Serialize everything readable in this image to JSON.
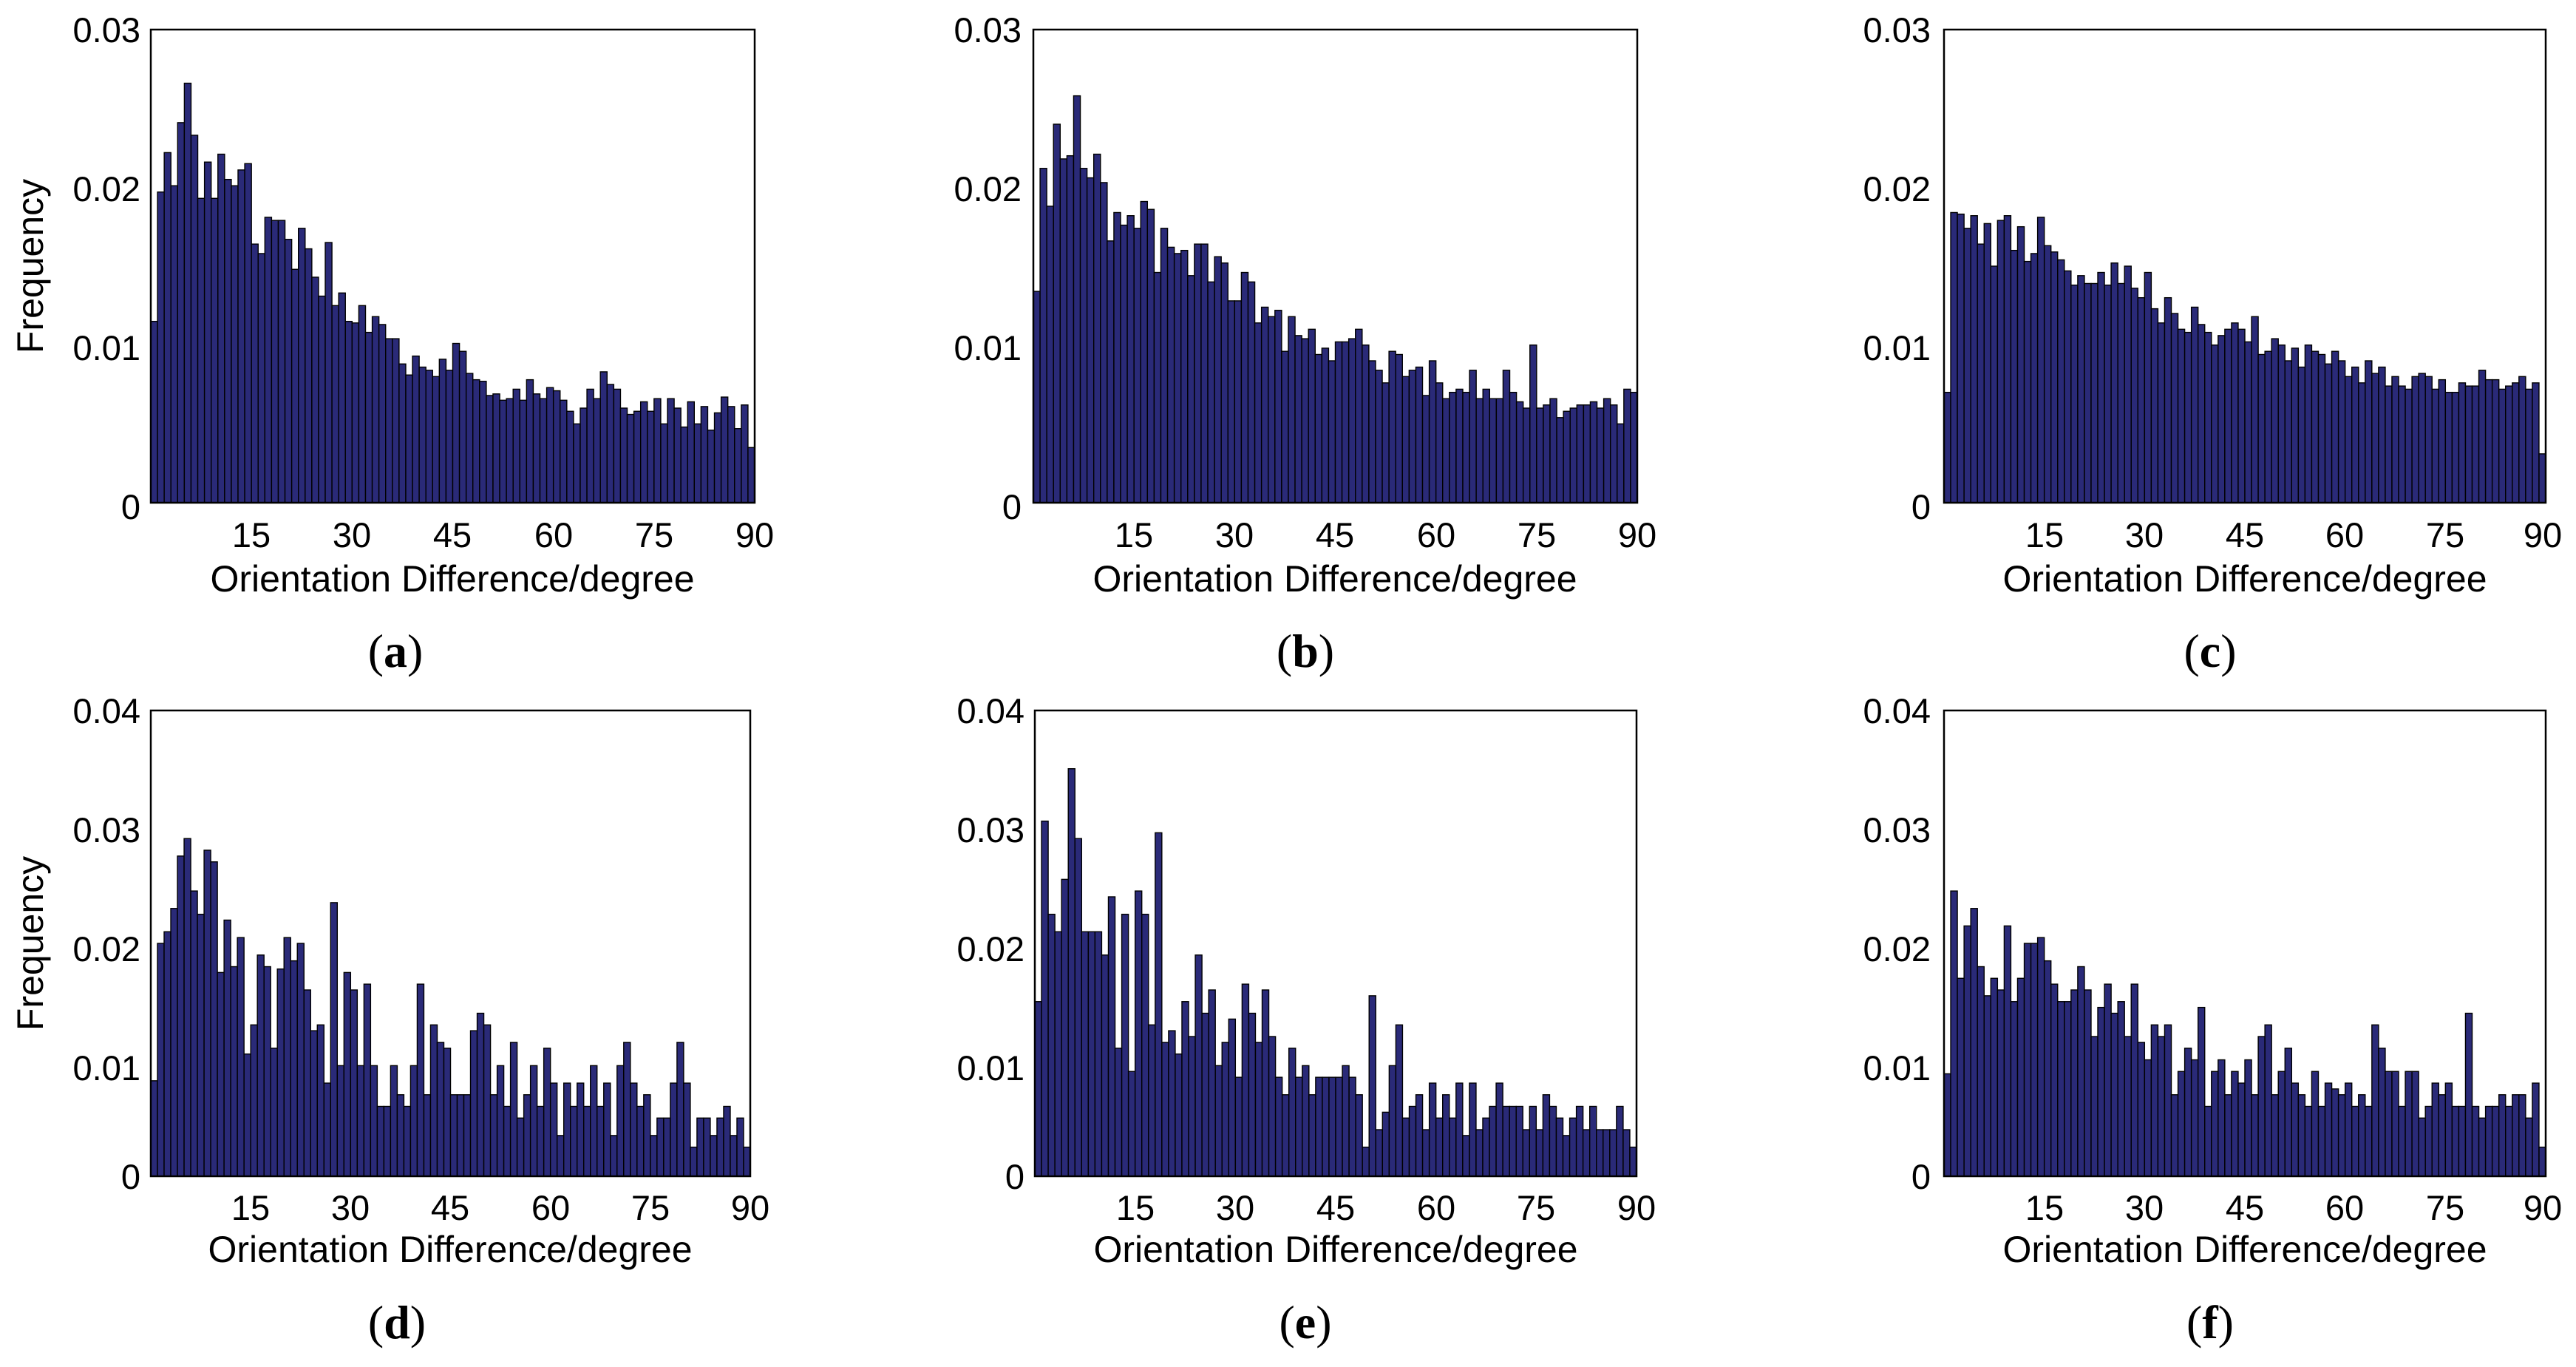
{
  "colors": {
    "bar_fill": "#2a2a78",
    "bar_edge": "#000000",
    "axes": "#000000",
    "background": "#ffffff"
  },
  "chart_data": [
    {
      "panel": "a",
      "type": "bar",
      "xlabel": "Orientation Difference/degree",
      "ylabel": "Frequency",
      "xlim": [
        0,
        90
      ],
      "ylim": [
        0,
        0.03
      ],
      "xticks": [
        15,
        30,
        45,
        60,
        75,
        90
      ],
      "xtick_labels": [
        "15",
        "30",
        "45",
        "60",
        "75",
        "90"
      ],
      "yticks": [
        0,
        0.01,
        0.02,
        0.03
      ],
      "ytick_labels": [
        "0",
        "0.01",
        "0.02",
        "0.03"
      ],
      "bin_width_deg": 1,
      "values": [
        0.0115,
        0.0197,
        0.0222,
        0.0201,
        0.0241,
        0.0266,
        0.0233,
        0.0193,
        0.0216,
        0.0193,
        0.0221,
        0.0205,
        0.0201,
        0.0211,
        0.0215,
        0.0164,
        0.0158,
        0.0181,
        0.0179,
        0.0179,
        0.0167,
        0.0148,
        0.0174,
        0.0161,
        0.0143,
        0.0131,
        0.0165,
        0.0125,
        0.0133,
        0.0115,
        0.0114,
        0.0125,
        0.0108,
        0.0118,
        0.0113,
        0.0104,
        0.0104,
        0.0088,
        0.0081,
        0.0093,
        0.0086,
        0.0084,
        0.008,
        0.0091,
        0.0084,
        0.0101,
        0.0096,
        0.0082,
        0.0078,
        0.0077,
        0.0068,
        0.0069,
        0.0065,
        0.0066,
        0.0072,
        0.0065,
        0.0078,
        0.0069,
        0.0066,
        0.0073,
        0.0071,
        0.0065,
        0.0058,
        0.005,
        0.006,
        0.0072,
        0.0066,
        0.0083,
        0.0075,
        0.0072,
        0.006,
        0.0056,
        0.0058,
        0.0064,
        0.0058,
        0.0066,
        0.005,
        0.0066,
        0.006,
        0.0048,
        0.0064,
        0.005,
        0.0061,
        0.0046,
        0.0057,
        0.0067,
        0.0061,
        0.0047,
        0.0062,
        0.0035
      ]
    },
    {
      "panel": "b",
      "type": "bar",
      "xlabel": "Orientation Difference/degree",
      "ylabel": "",
      "xlim": [
        0,
        90
      ],
      "ylim": [
        0,
        0.03
      ],
      "xticks": [
        15,
        30,
        45,
        60,
        75,
        90
      ],
      "xtick_labels": [
        "15",
        "30",
        "45",
        "60",
        "75",
        "90"
      ],
      "yticks": [
        0,
        0.01,
        0.02,
        0.03
      ],
      "ytick_labels": [
        "0",
        "0.01",
        "0.02",
        "0.03"
      ],
      "bin_width_deg": 1,
      "values": [
        0.0134,
        0.0212,
        0.0188,
        0.024,
        0.0218,
        0.022,
        0.0258,
        0.0212,
        0.0206,
        0.0221,
        0.0203,
        0.0166,
        0.0184,
        0.0176,
        0.0182,
        0.0174,
        0.0191,
        0.0186,
        0.0146,
        0.0174,
        0.0162,
        0.0158,
        0.016,
        0.0144,
        0.0164,
        0.0164,
        0.014,
        0.0156,
        0.0152,
        0.0128,
        0.0128,
        0.0146,
        0.014,
        0.0114,
        0.0124,
        0.0118,
        0.0122,
        0.0096,
        0.0118,
        0.0106,
        0.0104,
        0.011,
        0.0094,
        0.0098,
        0.009,
        0.0102,
        0.0102,
        0.0104,
        0.011,
        0.01,
        0.009,
        0.0084,
        0.0076,
        0.0096,
        0.0094,
        0.008,
        0.0084,
        0.0086,
        0.0068,
        0.009,
        0.0076,
        0.0066,
        0.007,
        0.0072,
        0.007,
        0.0084,
        0.0066,
        0.0072,
        0.0066,
        0.0066,
        0.0084,
        0.007,
        0.0064,
        0.006,
        0.01,
        0.006,
        0.0062,
        0.0066,
        0.0054,
        0.0058,
        0.006,
        0.0062,
        0.0062,
        0.0064,
        0.006,
        0.0066,
        0.0062,
        0.005,
        0.0072,
        0.007
      ]
    },
    {
      "panel": "c",
      "type": "bar",
      "xlabel": "Orientation Difference/degree",
      "ylabel": "",
      "xlim": [
        0,
        90
      ],
      "ylim": [
        0,
        0.03
      ],
      "xticks": [
        15,
        30,
        45,
        60,
        75,
        90
      ],
      "xtick_labels": [
        "15",
        "30",
        "45",
        "60",
        "75",
        "90"
      ],
      "yticks": [
        0,
        0.01,
        0.02,
        0.03
      ],
      "ytick_labels": [
        "0",
        "0.01",
        "0.02",
        "0.03"
      ],
      "bin_width_deg": 1,
      "values": [
        0.007,
        0.0184,
        0.0183,
        0.0174,
        0.0182,
        0.0164,
        0.0177,
        0.015,
        0.0179,
        0.0182,
        0.016,
        0.0175,
        0.0153,
        0.0158,
        0.0181,
        0.0163,
        0.0159,
        0.0154,
        0.0147,
        0.0138,
        0.0144,
        0.0139,
        0.0139,
        0.0146,
        0.0138,
        0.0152,
        0.0139,
        0.015,
        0.0136,
        0.013,
        0.0146,
        0.0123,
        0.0114,
        0.013,
        0.012,
        0.011,
        0.0108,
        0.0124,
        0.0113,
        0.0108,
        0.01,
        0.0106,
        0.011,
        0.0114,
        0.011,
        0.0102,
        0.0118,
        0.0094,
        0.0096,
        0.0104,
        0.01,
        0.009,
        0.0098,
        0.0086,
        0.01,
        0.0096,
        0.0094,
        0.0088,
        0.0096,
        0.009,
        0.008,
        0.0086,
        0.0076,
        0.009,
        0.0082,
        0.0086,
        0.0074,
        0.008,
        0.0074,
        0.0072,
        0.008,
        0.0082,
        0.008,
        0.0072,
        0.0078,
        0.007,
        0.007,
        0.0076,
        0.0074,
        0.0074,
        0.0084,
        0.0078,
        0.0078,
        0.0072,
        0.0074,
        0.0076,
        0.008,
        0.0072,
        0.0076,
        0.0031
      ]
    },
    {
      "panel": "d",
      "type": "bar",
      "xlabel": "Orientation Difference/degree",
      "ylabel": "Frequency",
      "xlim": [
        0,
        90
      ],
      "ylim": [
        0,
        0.04
      ],
      "xticks": [
        15,
        30,
        45,
        60,
        75,
        90
      ],
      "xtick_labels": [
        "15",
        "30",
        "45",
        "60",
        "75",
        "90"
      ],
      "yticks": [
        0,
        0.01,
        0.02,
        0.03,
        0.04
      ],
      "ytick_labels": [
        "0",
        "0.01",
        "0.02",
        "0.03",
        "0.04"
      ],
      "bin_width_deg": 1,
      "values": [
        0.0082,
        0.02,
        0.021,
        0.023,
        0.0275,
        0.029,
        0.0245,
        0.0225,
        0.028,
        0.027,
        0.0175,
        0.022,
        0.018,
        0.0205,
        0.0105,
        0.013,
        0.019,
        0.018,
        0.011,
        0.0178,
        0.0205,
        0.0185,
        0.02,
        0.016,
        0.0125,
        0.013,
        0.008,
        0.0235,
        0.0095,
        0.0175,
        0.016,
        0.0095,
        0.0165,
        0.0095,
        0.006,
        0.006,
        0.0095,
        0.007,
        0.006,
        0.0095,
        0.0165,
        0.007,
        0.013,
        0.0115,
        0.011,
        0.007,
        0.007,
        0.007,
        0.0125,
        0.014,
        0.013,
        0.007,
        0.0095,
        0.006,
        0.0115,
        0.005,
        0.007,
        0.0095,
        0.006,
        0.011,
        0.008,
        0.0035,
        0.008,
        0.006,
        0.008,
        0.006,
        0.0095,
        0.006,
        0.008,
        0.0035,
        0.0095,
        0.0115,
        0.008,
        0.006,
        0.007,
        0.0035,
        0.005,
        0.005,
        0.008,
        0.0115,
        0.008,
        0.0025,
        0.005,
        0.005,
        0.0035,
        0.005,
        0.006,
        0.0035,
        0.005,
        0.0025
      ]
    },
    {
      "panel": "e",
      "type": "bar",
      "xlabel": "Orientation Difference/degree",
      "ylabel": "",
      "xlim": [
        0,
        90
      ],
      "ylim": [
        0,
        0.04
      ],
      "xticks": [
        15,
        30,
        45,
        60,
        75,
        90
      ],
      "xtick_labels": [
        "15",
        "30",
        "45",
        "60",
        "75",
        "90"
      ],
      "yticks": [
        0,
        0.01,
        0.02,
        0.03,
        0.04
      ],
      "ytick_labels": [
        "0",
        "0.01",
        "0.02",
        "0.03",
        "0.04"
      ],
      "bin_width_deg": 1,
      "values": [
        0.015,
        0.0305,
        0.0225,
        0.021,
        0.0255,
        0.035,
        0.029,
        0.021,
        0.021,
        0.021,
        0.019,
        0.024,
        0.011,
        0.0225,
        0.009,
        0.0245,
        0.0225,
        0.013,
        0.0295,
        0.0115,
        0.0125,
        0.0105,
        0.015,
        0.012,
        0.019,
        0.014,
        0.016,
        0.0095,
        0.0115,
        0.0135,
        0.0085,
        0.0165,
        0.014,
        0.0115,
        0.016,
        0.012,
        0.0085,
        0.007,
        0.011,
        0.0085,
        0.0095,
        0.007,
        0.0085,
        0.0085,
        0.0085,
        0.0085,
        0.0095,
        0.0085,
        0.007,
        0.0025,
        0.0155,
        0.004,
        0.0055,
        0.0095,
        0.013,
        0.005,
        0.006,
        0.007,
        0.004,
        0.008,
        0.005,
        0.007,
        0.005,
        0.008,
        0.0035,
        0.008,
        0.004,
        0.005,
        0.006,
        0.008,
        0.006,
        0.006,
        0.006,
        0.004,
        0.006,
        0.004,
        0.007,
        0.006,
        0.005,
        0.0035,
        0.005,
        0.006,
        0.004,
        0.006,
        0.004,
        0.004,
        0.004,
        0.006,
        0.004,
        0.0025
      ]
    },
    {
      "panel": "f",
      "type": "bar",
      "xlabel": "Orientation Difference/degree",
      "ylabel": "",
      "xlim": [
        0,
        90
      ],
      "ylim": [
        0,
        0.04
      ],
      "xticks": [
        15,
        30,
        45,
        60,
        75,
        90
      ],
      "xtick_labels": [
        "15",
        "30",
        "45",
        "60",
        "75",
        "90"
      ],
      "yticks": [
        0,
        0.01,
        0.02,
        0.03,
        0.04
      ],
      "ytick_labels": [
        "0",
        "0.01",
        "0.02",
        "0.03",
        "0.04"
      ],
      "bin_width_deg": 1,
      "values": [
        0.0088,
        0.0245,
        0.017,
        0.0215,
        0.023,
        0.018,
        0.0155,
        0.017,
        0.016,
        0.0215,
        0.015,
        0.017,
        0.02,
        0.02,
        0.0205,
        0.0185,
        0.0165,
        0.015,
        0.015,
        0.016,
        0.018,
        0.016,
        0.012,
        0.0145,
        0.0165,
        0.014,
        0.015,
        0.012,
        0.0165,
        0.0115,
        0.01,
        0.013,
        0.012,
        0.013,
        0.007,
        0.009,
        0.011,
        0.01,
        0.0145,
        0.006,
        0.009,
        0.01,
        0.007,
        0.009,
        0.008,
        0.01,
        0.007,
        0.012,
        0.013,
        0.007,
        0.009,
        0.011,
        0.008,
        0.007,
        0.006,
        0.009,
        0.006,
        0.008,
        0.0075,
        0.007,
        0.008,
        0.006,
        0.007,
        0.006,
        0.013,
        0.011,
        0.009,
        0.009,
        0.006,
        0.009,
        0.009,
        0.005,
        0.006,
        0.008,
        0.007,
        0.008,
        0.006,
        0.006,
        0.014,
        0.006,
        0.005,
        0.006,
        0.006,
        0.007,
        0.006,
        0.007,
        0.007,
        0.005,
        0.008,
        0.0025
      ]
    }
  ]
}
